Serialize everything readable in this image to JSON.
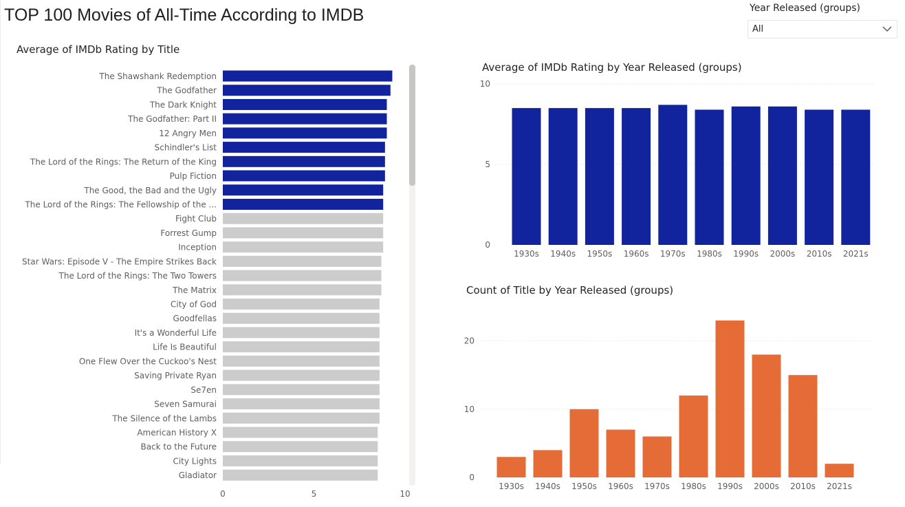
{
  "page": {
    "title": "TOP 100 Movies of All-Time According to IMDB"
  },
  "slicer": {
    "title": "Year Released (groups)",
    "value": "All",
    "icon": "chevron-down-icon"
  },
  "colors": {
    "highlight": "#12239e",
    "muted": "#cccccc",
    "orange": "#e66c37",
    "grid": "#d9d9d9"
  },
  "chart_data": [
    {
      "id": "rating_by_title",
      "type": "bar",
      "orientation": "horizontal",
      "title": "Average of IMDb Rating by Title",
      "xlabel": "",
      "ylabel": "",
      "xlim": [
        0,
        10
      ],
      "xticks": [
        0,
        5,
        10
      ],
      "highlight_count": 10,
      "categories": [
        "The Shawshank Redemption",
        "The Godfather",
        "The Dark Knight",
        "The Godfather: Part II",
        "12 Angry Men",
        "Schindler's List",
        "The Lord of the Rings: The Return of the King",
        "Pulp Fiction",
        "The Good, the Bad and the Ugly",
        "The Lord of the Rings: The Fellowship of the ...",
        "Fight Club",
        "Forrest Gump",
        "Inception",
        "Star Wars: Episode V - The Empire Strikes Back",
        "The Lord of the Rings: The Two Towers",
        "The Matrix",
        "City of God",
        "Goodfellas",
        "It's a Wonderful Life",
        "Life Is Beautiful",
        "One Flew Over the Cuckoo's Nest",
        "Saving Private Ryan",
        "Se7en",
        "Seven Samurai",
        "The Silence of the Lambs",
        "American History X",
        "Back to the Future",
        "City Lights",
        "Gladiator"
      ],
      "values": [
        9.3,
        9.2,
        9.0,
        9.0,
        9.0,
        8.9,
        8.9,
        8.9,
        8.8,
        8.8,
        8.8,
        8.8,
        8.8,
        8.7,
        8.7,
        8.7,
        8.6,
        8.6,
        8.6,
        8.6,
        8.6,
        8.6,
        8.6,
        8.6,
        8.6,
        8.5,
        8.5,
        8.5,
        8.5
      ],
      "grid": false
    },
    {
      "id": "rating_by_decade",
      "type": "bar",
      "title": "Average of IMDb Rating by Year Released (groups)",
      "xlabel": "",
      "ylabel": "",
      "ylim": [
        0,
        10
      ],
      "yticks": [
        0,
        5,
        10
      ],
      "categories": [
        "1930s",
        "1940s",
        "1950s",
        "1960s",
        "1970s",
        "1980s",
        "1990s",
        "2000s",
        "2010s",
        "2021s"
      ],
      "values": [
        8.5,
        8.5,
        8.5,
        8.5,
        8.7,
        8.4,
        8.6,
        8.6,
        8.4,
        8.4
      ],
      "grid": true
    },
    {
      "id": "count_by_decade",
      "type": "bar",
      "title": "Count of Title by Year Released (groups)",
      "xlabel": "",
      "ylabel": "",
      "ylim": [
        0,
        25
      ],
      "yticks": [
        0,
        10,
        20
      ],
      "categories": [
        "1930s",
        "1940s",
        "1950s",
        "1960s",
        "1970s",
        "1980s",
        "1990s",
        "2000s",
        "2010s",
        "2021s"
      ],
      "values": [
        3,
        4,
        10,
        7,
        6,
        12,
        23,
        18,
        15,
        2
      ],
      "grid": true
    }
  ]
}
